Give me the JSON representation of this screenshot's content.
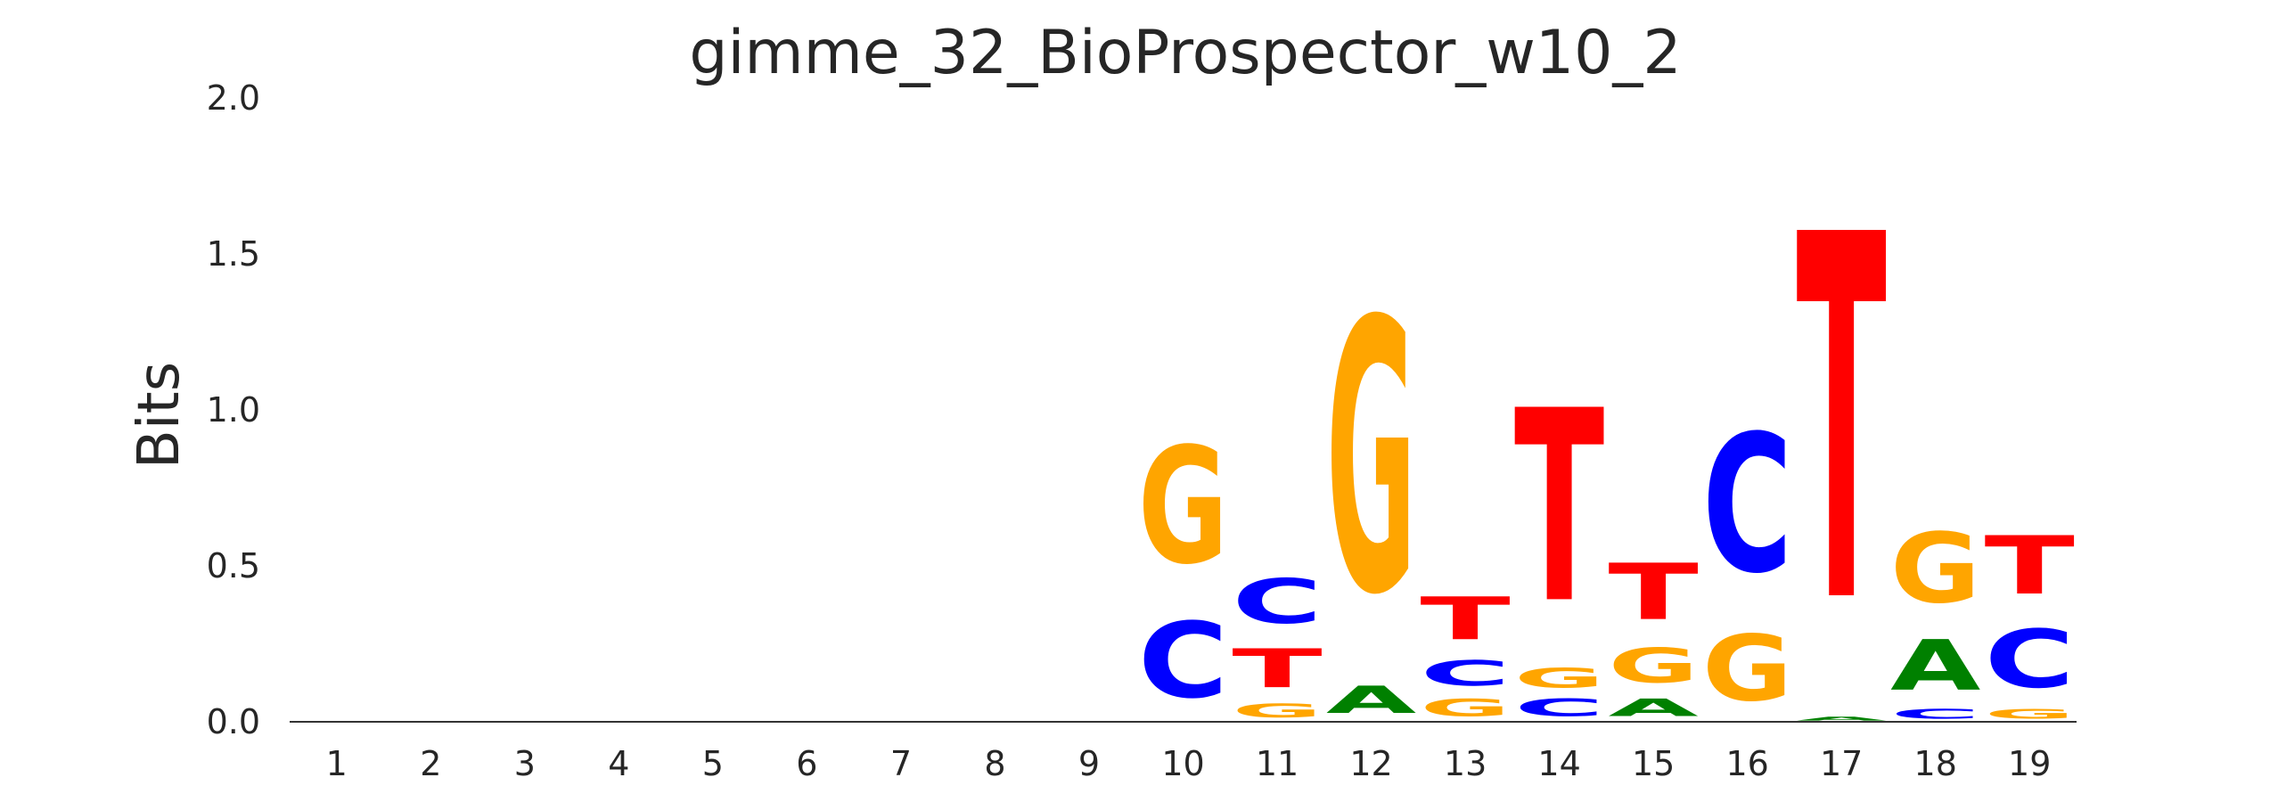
{
  "chart_data": {
    "type": "sequence-logo",
    "title": "gimme_32_BioProspector_w10_2",
    "ylabel": "Bits",
    "xlabel": "",
    "ylim": [
      0,
      2.0
    ],
    "yticks": [
      "0.0",
      "0.5",
      "1.0",
      "1.5",
      "2.0"
    ],
    "positions": [
      "1",
      "2",
      "3",
      "4",
      "5",
      "6",
      "7",
      "8",
      "9",
      "10",
      "11",
      "12",
      "13",
      "14",
      "15",
      "16",
      "17",
      "18",
      "19"
    ],
    "colors": {
      "A": "#008000",
      "C": "#0000ff",
      "G": "#ffa500",
      "T": "#ff0000"
    },
    "stacks": [
      [],
      [],
      [],
      [],
      [],
      [],
      [],
      [],
      [],
      [
        {
          "base": "C",
          "bits": 0.39
        },
        {
          "base": "G",
          "bits": 0.6
        }
      ],
      [
        {
          "base": "G",
          "bits": 0.07
        },
        {
          "base": "T",
          "bits": 0.2
        },
        {
          "base": "C",
          "bits": 0.23
        }
      ],
      [
        {
          "base": "A",
          "bits": 0.14
        },
        {
          "base": "G",
          "bits": 1.4
        }
      ],
      [
        {
          "base": "G",
          "bits": 0.09
        },
        {
          "base": "C",
          "bits": 0.13
        },
        {
          "base": "T",
          "bits": 0.22
        }
      ],
      [
        {
          "base": "C",
          "bits": 0.09
        },
        {
          "base": "G",
          "bits": 0.1
        },
        {
          "base": "T",
          "bits": 0.99
        }
      ],
      [
        {
          "base": "A",
          "bits": 0.09
        },
        {
          "base": "G",
          "bits": 0.18
        },
        {
          "base": "T",
          "bits": 0.29
        }
      ],
      [
        {
          "base": "G",
          "bits": 0.34
        },
        {
          "base": "C",
          "bits": 0.71
        }
      ],
      [
        {
          "base": "A",
          "bits": 0.02
        },
        {
          "base": "T",
          "bits": 1.88
        }
      ],
      [
        {
          "base": "C",
          "bits": 0.05
        },
        {
          "base": "A",
          "bits": 0.26
        },
        {
          "base": "G",
          "bits": 0.36
        }
      ],
      [
        {
          "base": "G",
          "bits": 0.05
        },
        {
          "base": "C",
          "bits": 0.3
        },
        {
          "base": "T",
          "bits": 0.3
        }
      ]
    ]
  }
}
